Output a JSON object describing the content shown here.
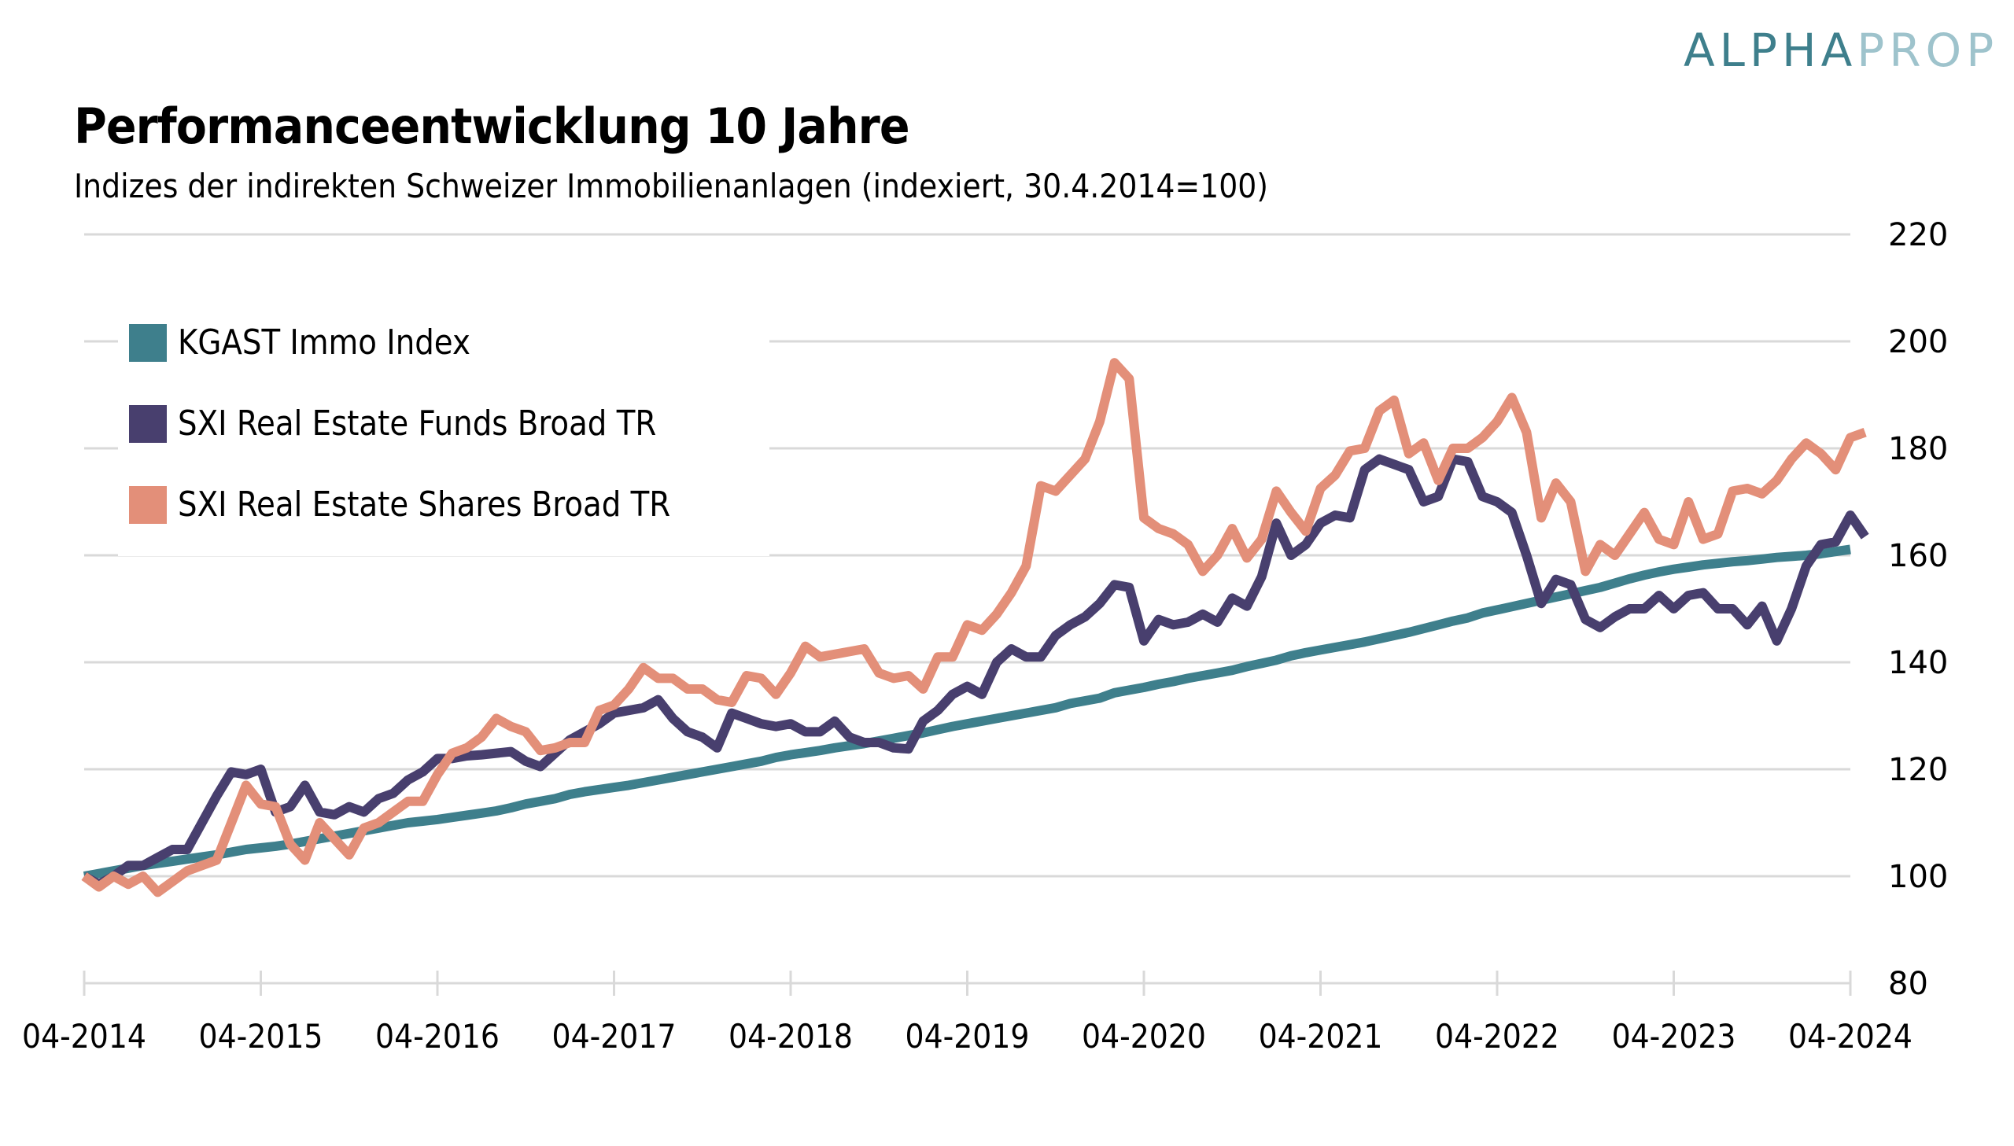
{
  "logo": {
    "part1": "ALPHA",
    "part2": "PROP"
  },
  "header": {
    "title": "Performanceentwicklung 10 Jahre",
    "subtitle": "Indizes der indirekten Schweizer Immobilienanlagen (indexiert, 30.4.2014=100)"
  },
  "chart_data": {
    "type": "line",
    "title": "Performanceentwicklung 10 Jahre",
    "subtitle": "Indizes der indirekten Schweizer Immobilienanlagen (indexiert, 30.4.2014=100)",
    "xlabel": "",
    "ylabel": "",
    "x_start": "04-2014",
    "x_end": "04-2024",
    "x_frequency": "monthly",
    "x_tick_labels": [
      "04-2014",
      "04-2015",
      "04-2016",
      "04-2017",
      "04-2018",
      "04-2019",
      "04-2020",
      "04-2021",
      "04-2022",
      "04-2023",
      "04-2024"
    ],
    "y_tick_labels": [
      "80",
      "100",
      "120",
      "140",
      "160",
      "180",
      "200",
      "220"
    ],
    "ylim": [
      80,
      220
    ],
    "y_axis_side": "right",
    "grid": "horizontal",
    "legend_position": "top-left",
    "series": [
      {
        "name": "KGAST Immo Index",
        "color": "#3e7f8c",
        "values": [
          100,
          100.5,
          101,
          101.5,
          102,
          102.4,
          102.8,
          103.2,
          103.6,
          104,
          104.5,
          105,
          105.3,
          105.6,
          106,
          106.5,
          107,
          107.5,
          108,
          108.5,
          109,
          109.5,
          110,
          110.3,
          110.6,
          111,
          111.4,
          111.8,
          112.2,
          112.8,
          113.5,
          114,
          114.5,
          115.3,
          115.8,
          116.2,
          116.6,
          117,
          117.5,
          118,
          118.5,
          119,
          119.5,
          120,
          120.5,
          121,
          121.5,
          122.2,
          122.7,
          123.1,
          123.5,
          124,
          124.4,
          124.8,
          125.3,
          125.8,
          126.3,
          126.8,
          127.4,
          128,
          128.5,
          129,
          129.5,
          130,
          130.5,
          131,
          131.5,
          132.3,
          132.8,
          133.3,
          134.3,
          134.8,
          135.3,
          135.9,
          136.4,
          137,
          137.5,
          138,
          138.5,
          139.2,
          139.8,
          140.4,
          141.2,
          141.8,
          142.3,
          142.8,
          143.3,
          143.8,
          144.4,
          145,
          145.6,
          146.3,
          147,
          147.7,
          148.3,
          149.2,
          149.8,
          150.4,
          151,
          151.6,
          152.2,
          152.8,
          153.4,
          154,
          154.8,
          155.6,
          156.3,
          156.9,
          157.4,
          157.8,
          158.2,
          158.5,
          158.8,
          159,
          159.3,
          159.6,
          159.8,
          160,
          160.3,
          160.7,
          161.1
        ]
      },
      {
        "name": "SXI Real Estate Funds Broad TR",
        "color": "#483f6e",
        "values": [
          100,
          98.5,
          100,
          102,
          102,
          103.5,
          105,
          105,
          110,
          115,
          119.5,
          119,
          120,
          112,
          113,
          117,
          112,
          111.5,
          113,
          112,
          114.5,
          115.5,
          118,
          119.5,
          122,
          122,
          122.5,
          122.7,
          123,
          123.3,
          121.5,
          120.5,
          123,
          125.5,
          127,
          128.5,
          130.5,
          131,
          131.5,
          133,
          129.5,
          127,
          126,
          124,
          130.5,
          129.5,
          128.5,
          128,
          128.5,
          127,
          127,
          129,
          126,
          125,
          125,
          124,
          123.8,
          129,
          131,
          134,
          135.5,
          134,
          140,
          142.5,
          141,
          141,
          145,
          147,
          148.5,
          151,
          154.5,
          154,
          144,
          148,
          147,
          147.5,
          149,
          147.5,
          152,
          150.5,
          156,
          166,
          160,
          162,
          166,
          167.5,
          167,
          176,
          178,
          177,
          176,
          170,
          171,
          178,
          177.5,
          171,
          170,
          168,
          160,
          151,
          155.5,
          154.5,
          148,
          146.5,
          148.5,
          150,
          150,
          152.5,
          150,
          152.5,
          153,
          150,
          150,
          147,
          150.5,
          144,
          150,
          158,
          162,
          162.5,
          167.5,
          163.5
        ]
      },
      {
        "name": "SXI Real Estate Shares Broad TR",
        "color": "#e38f79",
        "values": [
          100,
          98,
          100,
          98.5,
          100,
          97,
          99,
          101,
          102,
          103,
          110,
          117,
          113.5,
          113,
          106,
          103,
          110,
          107,
          104,
          109,
          110,
          112,
          114,
          114,
          119,
          123,
          124,
          126,
          129.5,
          128,
          127,
          123.5,
          124,
          125,
          125,
          131,
          132,
          135,
          139,
          137,
          137,
          135,
          135,
          133,
          132.5,
          137.5,
          137,
          134,
          138,
          143,
          141,
          141.5,
          142,
          142.5,
          138,
          137,
          137.5,
          135,
          141,
          141,
          147,
          146,
          149,
          153,
          158,
          173,
          172,
          175,
          178,
          185,
          196,
          193,
          167,
          165,
          164,
          162,
          157,
          160,
          165,
          159.5,
          163,
          172,
          168,
          164.5,
          172.5,
          175,
          179.5,
          180,
          187,
          189,
          179,
          181,
          174,
          180,
          180,
          182,
          185,
          189.5,
          183,
          167,
          173.5,
          170,
          157,
          162,
          160,
          164,
          168,
          163,
          162,
          170,
          163,
          164,
          172,
          172.5,
          171.5,
          174,
          178,
          181,
          179,
          176,
          182,
          183
        ]
      }
    ]
  }
}
